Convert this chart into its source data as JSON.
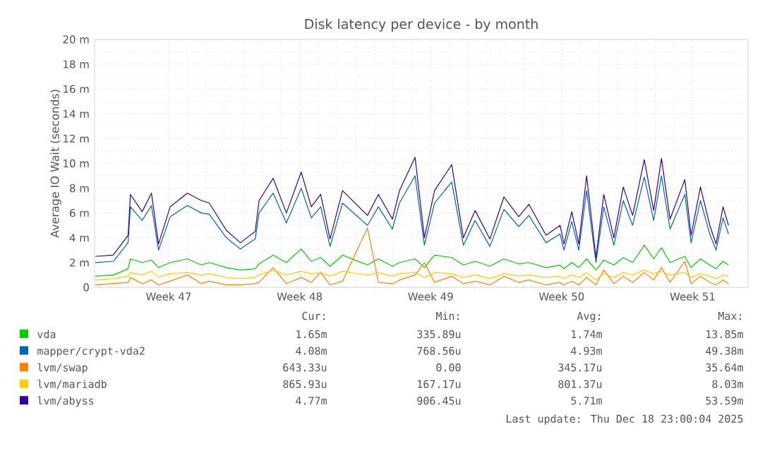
{
  "chart_data": {
    "type": "line",
    "title": "Disk latency per device - by month",
    "ylabel": "Average IO Wait (seconds)",
    "x": [
      "2025-11-14T02:00",
      "2025-11-15T01:00",
      "2025-11-15T20:00",
      "2025-11-15T23:00",
      "2025-11-16T14:00",
      "2025-11-17T02:00",
      "2025-11-17T11:00",
      "2025-11-18T02:00",
      "2025-11-19T00:00",
      "2025-11-19T18:00",
      "2025-11-20T04:00",
      "2025-11-21T02:00",
      "2025-11-21T20:00",
      "2025-11-22T15:00",
      "2025-11-22T20:00",
      "2025-11-23T14:00",
      "2025-11-24T07:00",
      "2025-11-25T02:00",
      "2025-11-25T15:00",
      "2025-11-26T03:00",
      "2025-11-26T15:00",
      "2025-11-27T07:00",
      "2025-11-28T15:00",
      "2025-11-29T05:00",
      "2025-11-29T23:00",
      "2025-11-30T08:00",
      "2025-12-01T04:00",
      "2025-12-01T16:00",
      "2025-12-02T05:00",
      "2025-12-03T03:00",
      "2025-12-03T18:00",
      "2025-12-04T09:00",
      "2025-12-05T04:00",
      "2025-12-05T22:00",
      "2025-12-06T17:00",
      "2025-12-07T06:00",
      "2025-12-08T04:00",
      "2025-12-08T22:00",
      "2025-12-09T03:00",
      "2025-12-09T13:00",
      "2025-12-09T22:00",
      "2025-12-10T08:00",
      "2025-12-10T20:00",
      "2025-12-11T06:00",
      "2025-12-11T19:00",
      "2025-12-12T07:00",
      "2025-12-12T19:00",
      "2025-12-13T10:00",
      "2025-12-13T22:00",
      "2025-12-14T08:00",
      "2025-12-14T19:00",
      "2025-12-15T14:00",
      "2025-12-15T22:00",
      "2025-12-16T10:00",
      "2025-12-16T22:00",
      "2025-12-17T06:00",
      "2025-12-17T15:00",
      "2025-12-17T22:00"
    ],
    "xlim": [
      "2025-11-14T01:00",
      "2025-12-18T23:00"
    ],
    "xticks": [
      {
        "value": "2025-11-18",
        "label": "Week 47"
      },
      {
        "value": "2025-11-25",
        "label": "Week 48"
      },
      {
        "value": "2025-12-02",
        "label": "Week 49"
      },
      {
        "value": "2025-12-09",
        "label": "Week 50"
      },
      {
        "value": "2025-12-16",
        "label": "Week 51"
      }
    ],
    "ylim": [
      0,
      20
    ],
    "yticks": [
      0,
      {
        "value": 2,
        "label": "2 m"
      },
      {
        "value": 4,
        "label": "4 m"
      },
      {
        "value": 6,
        "label": "6 m"
      },
      {
        "value": 8,
        "label": "8 m"
      },
      {
        "value": 10,
        "label": "10 m"
      },
      {
        "value": 12,
        "label": "12 m"
      },
      {
        "value": 14,
        "label": "14 m"
      },
      {
        "value": 16,
        "label": "16 m"
      },
      {
        "value": 18,
        "label": "18 m"
      },
      {
        "value": 20,
        "label": "20 m"
      }
    ],
    "grid": true,
    "legend": "bottom",
    "marker": "none",
    "line_style": "solid",
    "series": [
      {
        "name": "vda",
        "color": "#00cc00",
        "values": [
          0.9,
          1.0,
          1.5,
          2.3,
          2.0,
          2.2,
          1.6,
          2.0,
          2.3,
          1.8,
          2.0,
          1.6,
          1.4,
          1.5,
          1.9,
          2.6,
          2.0,
          3.1,
          2.1,
          2.4,
          1.7,
          2.6,
          1.8,
          2.3,
          1.7,
          2.0,
          2.3,
          1.6,
          2.6,
          2.4,
          1.8,
          2.1,
          1.7,
          2.3,
          1.9,
          2.0,
          1.6,
          1.8,
          1.5,
          2.0,
          1.6,
          2.3,
          1.4,
          2.2,
          1.8,
          2.4,
          2.0,
          3.4,
          2.3,
          3.2,
          2.0,
          2.5,
          1.6,
          2.3,
          1.8,
          1.5,
          2.1,
          1.8
        ]
      },
      {
        "name": "mapper/crypt-vda2",
        "color": "#0066b3",
        "values": [
          2.0,
          2.1,
          3.6,
          6.5,
          5.4,
          6.6,
          3.0,
          5.7,
          6.6,
          6.0,
          5.9,
          4.0,
          3.1,
          3.9,
          6.0,
          7.6,
          5.2,
          8.0,
          5.6,
          6.5,
          3.3,
          6.8,
          5.0,
          6.5,
          4.7,
          6.8,
          9.0,
          3.4,
          6.8,
          8.5,
          3.4,
          5.4,
          3.3,
          6.3,
          4.9,
          5.8,
          3.6,
          4.3,
          3.0,
          5.3,
          3.0,
          7.8,
          2.0,
          6.5,
          3.4,
          7.0,
          5.0,
          8.9,
          5.4,
          9.0,
          4.7,
          7.5,
          3.6,
          7.0,
          4.3,
          3.0,
          5.6,
          4.3
        ]
      },
      {
        "name": "lvm/swap",
        "color": "#ff8000",
        "values": [
          0.2,
          0.3,
          0.4,
          0.8,
          0.3,
          0.6,
          0.2,
          0.5,
          1.0,
          0.3,
          0.5,
          0.2,
          0.2,
          0.3,
          0.4,
          1.6,
          0.3,
          0.8,
          0.4,
          1.2,
          0.2,
          0.5,
          4.8,
          0.4,
          0.3,
          0.6,
          1.0,
          2.0,
          0.4,
          0.9,
          0.3,
          0.5,
          0.2,
          0.9,
          0.4,
          0.6,
          0.2,
          0.4,
          0.2,
          0.5,
          0.2,
          0.8,
          0.2,
          1.4,
          0.3,
          0.9,
          0.4,
          1.2,
          0.6,
          1.6,
          0.4,
          2.1,
          0.3,
          0.9,
          0.4,
          0.2,
          0.6,
          0.3
        ]
      },
      {
        "name": "lvm/mariadb",
        "color": "#ffcc00",
        "values": [
          0.6,
          0.7,
          0.9,
          1.2,
          1.0,
          1.3,
          0.8,
          1.1,
          1.2,
          1.0,
          1.1,
          0.8,
          0.7,
          0.8,
          1.0,
          1.4,
          1.0,
          1.3,
          1.1,
          1.2,
          0.9,
          1.3,
          1.0,
          1.2,
          0.9,
          1.1,
          1.2,
          0.8,
          1.2,
          1.1,
          0.8,
          1.0,
          0.7,
          1.1,
          0.9,
          1.0,
          0.8,
          0.9,
          0.7,
          1.0,
          0.8,
          1.2,
          0.6,
          1.1,
          0.8,
          1.2,
          1.0,
          1.4,
          1.1,
          1.3,
          1.0,
          1.2,
          0.8,
          1.1,
          0.9,
          0.7,
          1.0,
          0.9
        ]
      },
      {
        "name": "lvm/abyss",
        "color": "#330099",
        "values": [
          2.5,
          2.6,
          4.2,
          7.5,
          6.1,
          7.6,
          3.5,
          6.5,
          7.6,
          7.0,
          6.8,
          4.6,
          3.6,
          4.5,
          7.0,
          8.8,
          6.0,
          9.3,
          6.5,
          7.5,
          3.9,
          7.8,
          5.8,
          7.5,
          5.5,
          7.8,
          10.5,
          4.0,
          7.8,
          9.9,
          4.0,
          6.2,
          3.9,
          7.3,
          5.7,
          6.7,
          4.2,
          5.0,
          3.5,
          6.1,
          3.5,
          9.0,
          2.4,
          7.5,
          4.0,
          8.1,
          5.8,
          10.3,
          6.2,
          10.4,
          5.5,
          8.7,
          4.2,
          8.1,
          5.0,
          3.5,
          6.5,
          5.0
        ]
      }
    ],
    "annotations": [
      "Cur:",
      "Min:",
      "Avg:",
      "Max:",
      "1.65m",
      "335.89u",
      "1.74m",
      "13.85m",
      "4.08m",
      "768.56u",
      "4.93m",
      "49.38m",
      "643.33u",
      "0.00",
      "345.17u",
      "35.64m",
      "865.93u",
      "167.17u",
      "801.37u",
      "8.03m",
      "4.77m",
      "906.45u",
      "5.71m",
      "53.59m",
      "Last update: Thu Dec 18 23:00:04 2025"
    ]
  }
}
